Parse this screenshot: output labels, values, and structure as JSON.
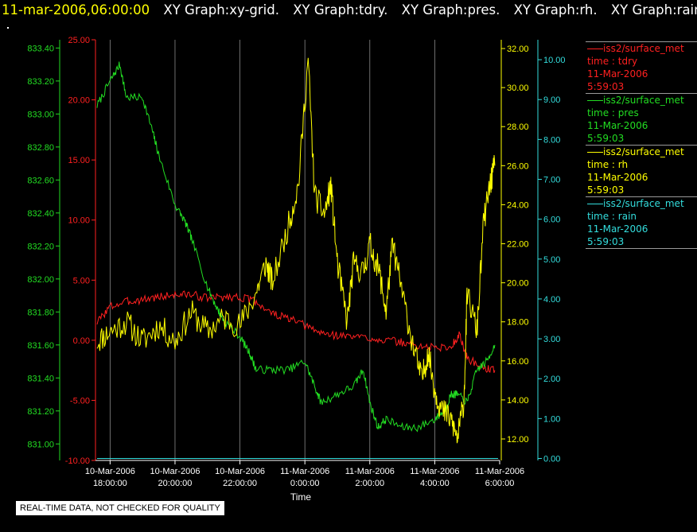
{
  "header": {
    "date": "11-mar-2006,06:00:00",
    "graphs": [
      "XY Graph:xy-grid.",
      "XY Graph:tdry.",
      "XY Graph:pres.",
      "XY Graph:rh.",
      "XY Graph:rain"
    ]
  },
  "footer_note": "REAL-TIME DATA, NOT CHECKED FOR QUALITY",
  "legend": [
    {
      "source": "iss2/surface_met",
      "var": "time : tdry",
      "date": "11-Mar-2006",
      "time": "5:59:03",
      "color": "#ff2020"
    },
    {
      "source": "iss2/surface_met",
      "var": "time : pres",
      "date": "11-Mar-2006",
      "time": "5:59:03",
      "color": "#22dd22"
    },
    {
      "source": "iss2/surface_met",
      "var": "time : rh",
      "date": "11-Mar-2006",
      "time": "5:59:03",
      "color": "#ffff00"
    },
    {
      "source": "iss2/surface_met",
      "var": "time : rain",
      "date": "11-Mar-2006",
      "time": "5:59:03",
      "color": "#33dddd"
    }
  ],
  "chart_data": {
    "type": "line",
    "xlabel": "Time",
    "x_ticks": [
      {
        "date": "10-Mar-2006",
        "time": "18:00:00",
        "h": 0
      },
      {
        "date": "10-Mar-2006",
        "time": "20:00:00",
        "h": 2
      },
      {
        "date": "10-Mar-2006",
        "time": "22:00:00",
        "h": 4
      },
      {
        "date": "11-Mar-2006",
        "time": "0:00:00",
        "h": 6
      },
      {
        "date": "11-Mar-2006",
        "time": "2:00:00",
        "h": 8
      },
      {
        "date": "11-Mar-2006",
        "time": "4:00:00",
        "h": 10
      },
      {
        "date": "11-Mar-2006",
        "time": "6:00:00",
        "h": 12
      }
    ],
    "xlim": [
      -0.45,
      12.0
    ],
    "grid": "vertical",
    "axes": [
      {
        "id": "tdry",
        "color": "#ff2020",
        "ylim": [
          -10,
          25
        ],
        "ticks": [
          "25.00",
          "20.00",
          "15.00",
          "10.00",
          "5.00",
          "0.00",
          "-5.00",
          "-10.00"
        ]
      },
      {
        "id": "pres",
        "color": "#22dd22",
        "ylim": [
          830.9,
          833.45
        ],
        "ticks": [
          "833.40",
          "833.20",
          "833.00",
          "832.80",
          "832.60",
          "832.40",
          "832.20",
          "832.00",
          "831.80",
          "831.60",
          "831.40",
          "831.20",
          "831.00"
        ]
      },
      {
        "id": "rh",
        "color": "#ffff00",
        "ylim": [
          10.9,
          32.45
        ],
        "ticks": [
          "32.00",
          "30.00",
          "28.00",
          "26.00",
          "24.00",
          "22.00",
          "20.00",
          "18.00",
          "16.00",
          "14.00",
          "12.00"
        ]
      },
      {
        "id": "rain",
        "color": "#33dddd",
        "ylim": [
          -0.05,
          10.5
        ],
        "ticks": [
          "10.00",
          "9.00",
          "8.00",
          "7.00",
          "6.00",
          "5.00",
          "4.00",
          "3.00",
          "2.00",
          "1.00",
          "0.00"
        ]
      }
    ],
    "series": [
      {
        "axis": "tdry",
        "color": "#ff2020",
        "noise": 0.35,
        "seed": 3,
        "x": [
          -0.4,
          0,
          0.5,
          1,
          1.5,
          2,
          2.5,
          3,
          3.5,
          4,
          4.5,
          5,
          5.5,
          6,
          6.5,
          7,
          7.5,
          8,
          8.5,
          9,
          9.5,
          10,
          10.5,
          10.75,
          11,
          11.5,
          11.85
        ],
        "y": [
          1.5,
          2.8,
          3.2,
          3.4,
          3.6,
          3.8,
          3.8,
          3.5,
          3.6,
          3.6,
          3.2,
          2.2,
          1.8,
          1.2,
          0.6,
          0.4,
          0.3,
          0.2,
          0.0,
          -0.2,
          -0.5,
          -0.6,
          -0.6,
          0.5,
          -1.5,
          -2.3,
          -2.5
        ]
      },
      {
        "axis": "pres",
        "color": "#22dd22",
        "noise": 0.025,
        "seed": 7,
        "x": [
          -0.4,
          0,
          0.3,
          0.5,
          1,
          1.3,
          1.5,
          2,
          2.3,
          2.5,
          3,
          3.3,
          3.5,
          4,
          4.3,
          4.5,
          5,
          5.5,
          6,
          6.3,
          6.5,
          7,
          7.5,
          7.8,
          8,
          8.25,
          8.5,
          9,
          9.5,
          10,
          10.3,
          10.5,
          10.7,
          11,
          11.3,
          11.6,
          11.85
        ],
        "y": [
          833.05,
          833.2,
          833.3,
          833.1,
          833.1,
          832.9,
          832.75,
          832.45,
          832.35,
          832.25,
          831.95,
          831.82,
          831.75,
          831.65,
          831.55,
          831.45,
          831.45,
          831.45,
          831.5,
          831.35,
          831.25,
          831.3,
          831.35,
          831.45,
          831.25,
          831.1,
          831.15,
          831.1,
          831.1,
          831.15,
          831.2,
          831.3,
          831.3,
          831.25,
          831.45,
          831.5,
          831.6
        ]
      },
      {
        "axis": "rh",
        "color": "#ffff00",
        "noise": 0.7,
        "seed": 11,
        "x": [
          -0.4,
          0,
          0.5,
          1,
          1.5,
          2,
          2.5,
          3,
          3.5,
          4,
          4.5,
          4.8,
          5,
          5.5,
          5.8,
          6.1,
          6.3,
          6.6,
          6.8,
          7.0,
          7.3,
          7.5,
          7.8,
          8.0,
          8.3,
          8.5,
          8.7,
          9.0,
          9.3,
          9.6,
          9.8,
          10.0,
          10.2,
          10.5,
          10.7,
          10.9,
          11.0,
          11.3,
          11.5,
          11.7,
          11.85
        ],
        "y": [
          17,
          17.5,
          18,
          17,
          17.8,
          17,
          18.5,
          17.5,
          18.2,
          17.8,
          19.5,
          21,
          20,
          23,
          25,
          31.5,
          24.5,
          23.5,
          25,
          21,
          18,
          21,
          20.5,
          22,
          20.5,
          18.5,
          22,
          19.5,
          17,
          15,
          16.5,
          14.5,
          13.5,
          13,
          12,
          14,
          19.5,
          17.5,
          23,
          25,
          26
        ]
      },
      {
        "axis": "rain",
        "color": "#33dddd",
        "noise": 0,
        "seed": 1,
        "x": [
          -0.4,
          11.95
        ],
        "y": [
          0.0,
          0.0
        ]
      }
    ]
  }
}
